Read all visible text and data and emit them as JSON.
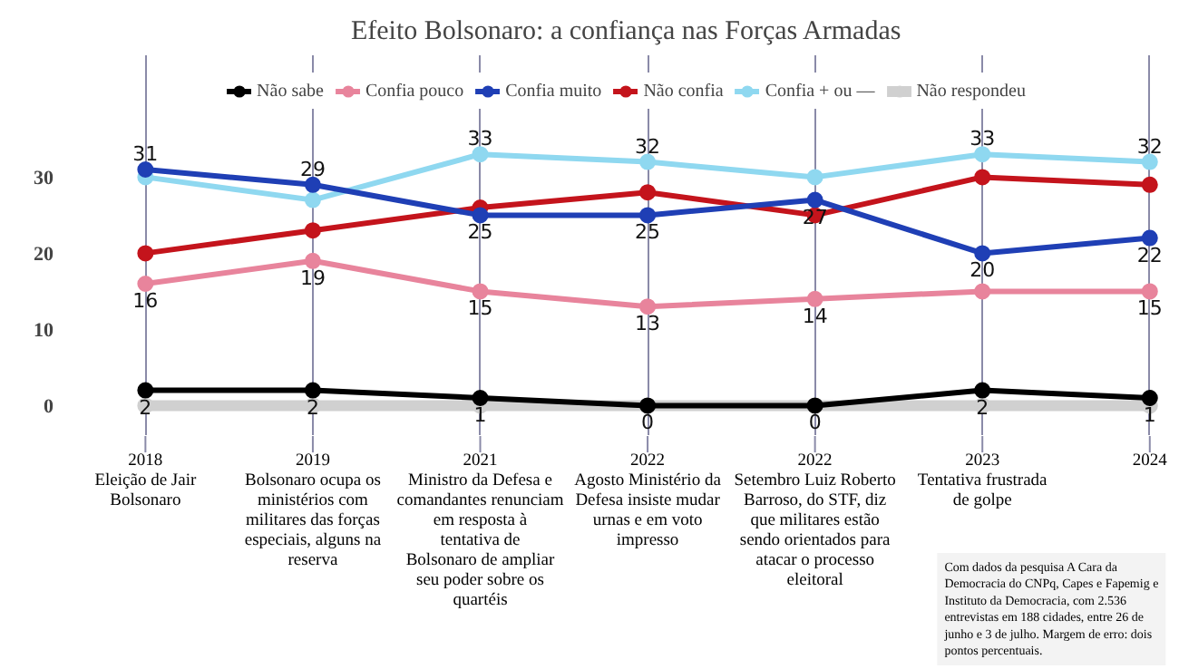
{
  "chart_data": {
    "type": "line",
    "title": "Efeito Bolsonaro: a confiança nas Forças Armadas",
    "categories": [
      "2018\nEleição de Jair Bolsonaro",
      "2019\nBolsonaro ocupa os ministérios com militares das forças especiais, alguns na reserva",
      "2021\nMinistro da Defesa e comandantes renunciam em resposta à tentativa de Bolsonaro de ampliar seu poder sobre os quartéis",
      "2022\nAgosto Ministério da Defesa insiste mudar urnas e em voto impresso",
      "2022\nSetembro Luiz Roberto Barroso, do STF, diz que militares estão sendo orientados para atacar o processo eleitoral",
      "2023\nTentativa frustrada de golpe",
      "2024"
    ],
    "series": [
      {
        "name": "Não respondeu",
        "color": "#d0d0d0",
        "values": [
          0,
          0,
          0,
          0,
          0,
          0,
          0
        ],
        "value_labels": [
          null,
          null,
          null,
          null,
          null,
          null,
          null
        ]
      },
      {
        "name": "Confia + ou —",
        "color": "#8fd8f0",
        "values": [
          30,
          27,
          33,
          32,
          30,
          33,
          32
        ],
        "value_labels": [
          null,
          null,
          "33",
          "32",
          null,
          "33",
          "32"
        ]
      },
      {
        "name": "Não confia",
        "color": "#c4141c",
        "values": [
          20,
          23,
          26,
          28,
          25,
          30,
          29
        ],
        "value_labels": [
          null,
          null,
          null,
          null,
          null,
          null,
          null
        ]
      },
      {
        "name": "Confia muito",
        "color": "#1f3fb5",
        "values": [
          31,
          29,
          25,
          25,
          27,
          20,
          22
        ],
        "value_labels": [
          "31",
          "29",
          "25",
          "25",
          "27",
          "20",
          "22"
        ]
      },
      {
        "name": "Confia pouco",
        "color": "#e8849c",
        "values": [
          16,
          19,
          15,
          13,
          14,
          15,
          15
        ],
        "value_labels": [
          "16",
          "19",
          "15",
          "13",
          "14",
          null,
          "15"
        ]
      },
      {
        "name": "Não sabe",
        "color": "#000000",
        "values": [
          2,
          2,
          1,
          0,
          0,
          2,
          1
        ],
        "value_labels": [
          "2",
          "2",
          "1",
          "0",
          "0",
          "2",
          "1"
        ]
      }
    ],
    "ylim": [
      -4,
      46
    ],
    "yticks": [
      0,
      10,
      20,
      30
    ],
    "grid": "x",
    "legend": "top",
    "marker": "circle",
    "line_style": "solid",
    "annotations": [
      "Com dados da pesquisa A Cara da Democracia do CNPq, Capes e Fapemig e Instituto da Democracia, com 2.536 entrevistas em 188 cidades, entre 26 de junho e 3 de julho. Margem de erro: dois pontos percentuais."
    ]
  }
}
